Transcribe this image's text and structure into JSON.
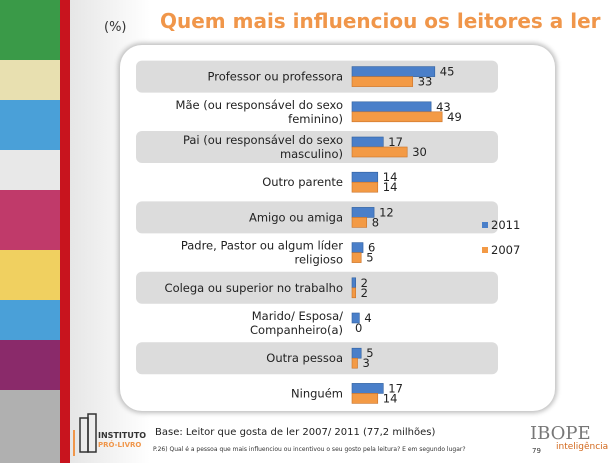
{
  "header": {
    "unit": "(%)",
    "title": "Quem mais influenciou os leitores a ler"
  },
  "chart_data": {
    "type": "bar",
    "orientation": "horizontal",
    "title": "Quem mais influenciou os leitores a ler",
    "unit": "(%)",
    "categories": [
      "Professor ou professora",
      "Mãe (ou responsável do sexo\nfeminino)",
      "Pai (ou responsável do sexo\nmasculino)",
      "Outro parente",
      "Amigo ou amiga",
      "Padre, Pastor ou algum líder\nreligioso",
      "Colega ou superior no trabalho",
      "Marido/ Esposa/\nCompanheiro(a)",
      "Outra pessoa",
      "Ninguém"
    ],
    "series": [
      {
        "name": "2011",
        "color": "#4a7fc9",
        "values": [
          45,
          43,
          17,
          14,
          12,
          6,
          2,
          4,
          5,
          17
        ]
      },
      {
        "name": "2007",
        "color": "#f39a45",
        "values": [
          33,
          49,
          30,
          14,
          8,
          5,
          2,
          0,
          3,
          14
        ]
      }
    ],
    "legend": "right",
    "grid": false
  },
  "footer": {
    "logo_left": "INSTITUTO PRÓ-LIVRO",
    "base": "Base: Leitor que gosta de ler 2007/ 2011 (77,2 milhões)",
    "question": "P.26) Qual é a pessoa que mais influenciou ou incentivou o seu gosto pela leitura? E em segundo lugar?",
    "page": "79",
    "logo_right": "IBOPE",
    "logo_right_sub": "inteligência"
  }
}
